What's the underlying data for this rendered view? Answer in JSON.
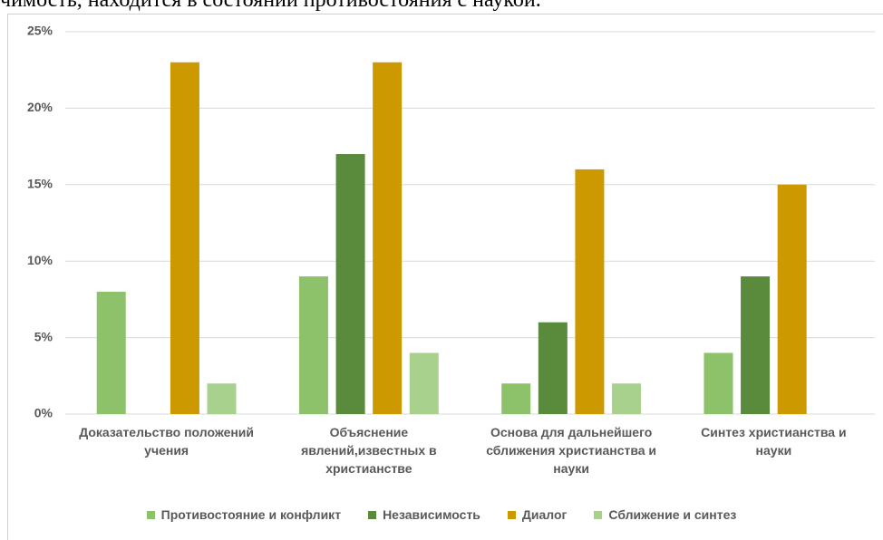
{
  "header_text": "чимость, находится в состоянии противостояния с наукой.",
  "chart_data": {
    "type": "bar",
    "categories": [
      "Доказательство положений учения",
      "Объяснение явлений,известных в христианстве",
      "Основа для дальнейшего сближения христианства и науки",
      "Синтез христианства и науки"
    ],
    "series": [
      {
        "name": "Противостояние и конфликт",
        "color": "#8dc26b",
        "values": [
          8,
          9,
          2,
          4
        ]
      },
      {
        "name": "Независимость",
        "color": "#5a8a3c",
        "values": [
          null,
          17,
          6,
          9
        ]
      },
      {
        "name": "Диалог",
        "color": "#cc9900",
        "values": [
          23,
          23,
          16,
          15
        ]
      },
      {
        "name": "Сближение и синтез",
        "color": "#a9d18e",
        "values": [
          2,
          4,
          2,
          null
        ]
      }
    ],
    "ylim": [
      0,
      25
    ],
    "yticks": [
      {
        "value": 0,
        "label": "0%"
      },
      {
        "value": 5,
        "label": "5%"
      },
      {
        "value": 10,
        "label": "10%"
      },
      {
        "value": 15,
        "label": "15%"
      },
      {
        "value": 20,
        "label": "20%"
      },
      {
        "value": 25,
        "label": "25%"
      }
    ],
    "grid": true,
    "legend": "bottom"
  }
}
